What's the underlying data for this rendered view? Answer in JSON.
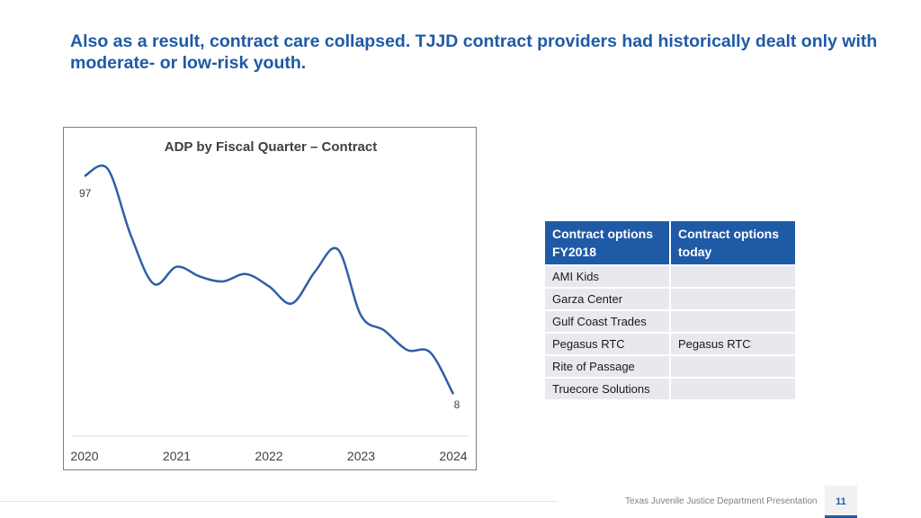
{
  "slide": {
    "title": "Also as a result, contract care collapsed. TJJD contract providers had historically dealt only with moderate- or low-risk youth.",
    "footer": "Texas Juvenile Justice Department Presentation",
    "page_number": "11"
  },
  "chart_data": {
    "type": "line",
    "title": "ADP by Fiscal Quarter – Contract",
    "xlabel": "",
    "ylabel": "",
    "x_tick_labels": [
      "2020",
      "2021",
      "2022",
      "2023",
      "2024"
    ],
    "x": [
      2020.0,
      2020.25,
      2020.5,
      2020.75,
      2021.0,
      2021.25,
      2021.5,
      2021.75,
      2022.0,
      2022.25,
      2022.5,
      2022.75,
      2023.0,
      2023.25,
      2023.5,
      2023.75,
      2024.0
    ],
    "values": [
      97,
      100,
      73,
      53,
      60,
      56,
      54,
      57,
      52,
      45,
      58,
      67,
      40,
      34,
      26,
      25,
      8
    ],
    "data_labels": [
      {
        "index": 0,
        "text": "97"
      },
      {
        "index": 16,
        "text": "8"
      }
    ],
    "ylim": [
      0,
      105
    ],
    "series_color": "#2e5fa8",
    "grid": false,
    "legend": "none"
  },
  "table": {
    "headers": [
      "Contract options FY2018",
      "Contract options today"
    ],
    "rows": [
      [
        "AMI Kids",
        ""
      ],
      [
        "Garza Center",
        ""
      ],
      [
        "Gulf Coast Trades",
        ""
      ],
      [
        "Pegasus RTC",
        "Pegasus RTC"
      ],
      [
        "Rite of Passage",
        ""
      ],
      [
        "Truecore Solutions",
        ""
      ]
    ]
  }
}
